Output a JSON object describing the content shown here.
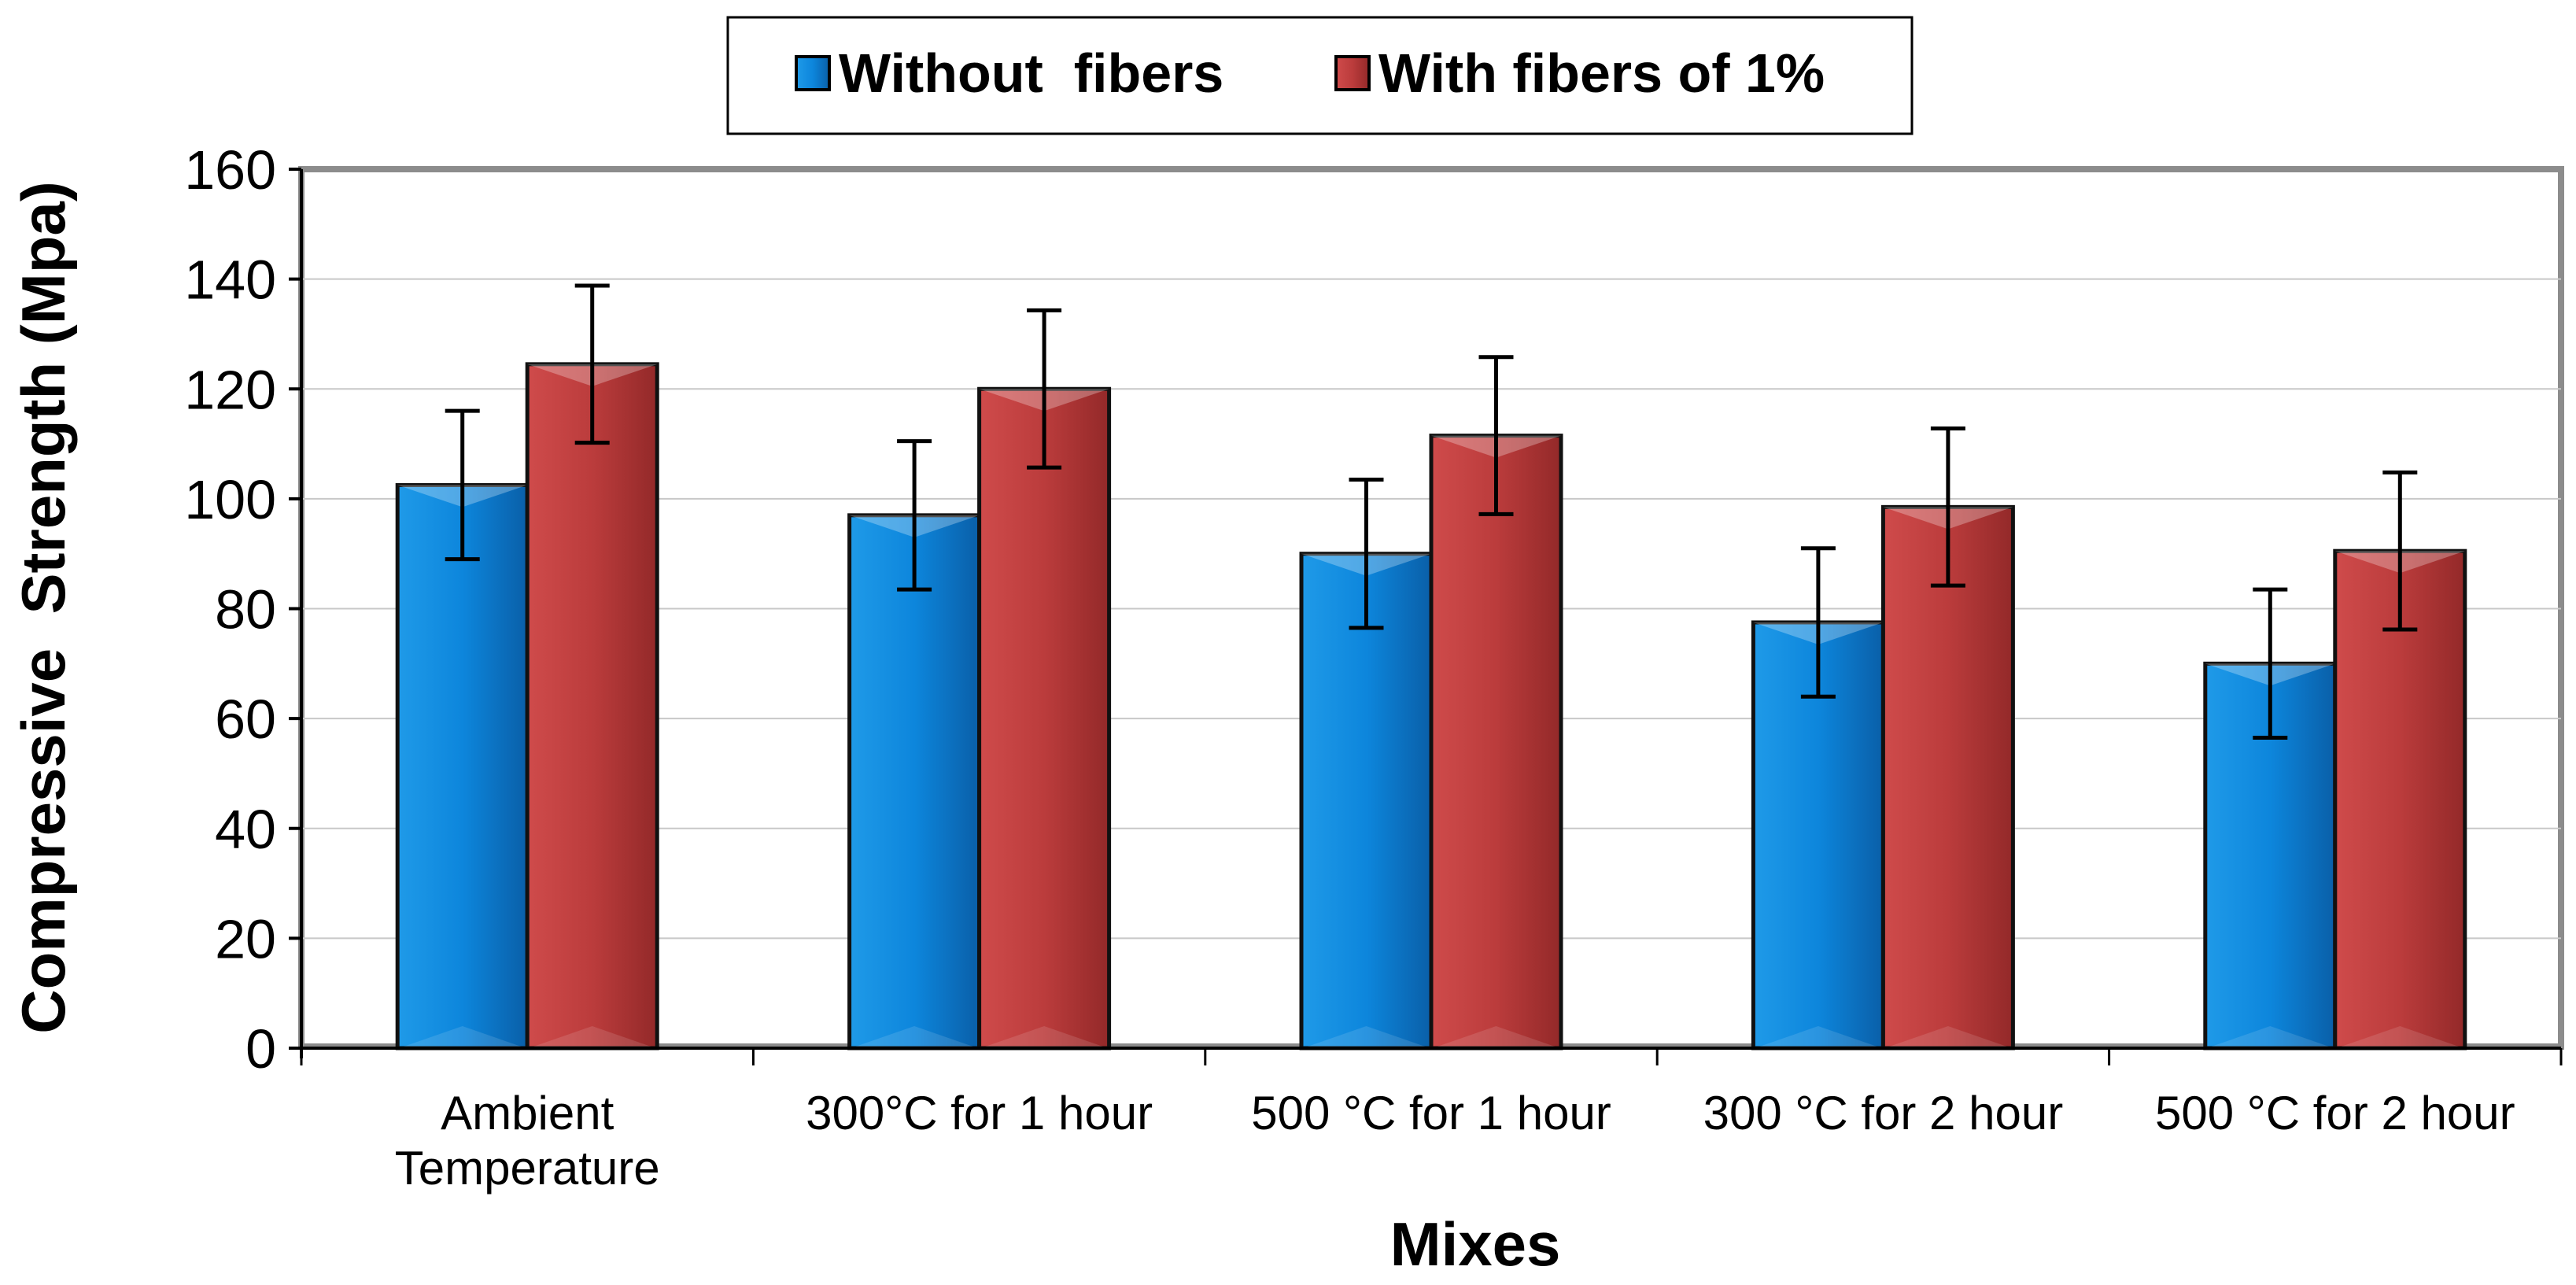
{
  "chart_data": {
    "type": "bar",
    "title": "",
    "xlabel": "Mixes",
    "ylabel": "Compressive  Strength (Mpa)",
    "ylim": [
      0,
      160
    ],
    "yticks": [
      "0",
      "20",
      "40",
      "60",
      "80",
      "100",
      "120",
      "140",
      "160"
    ],
    "grid": true,
    "legend_position": "top-center",
    "categories": [
      [
        "Ambient",
        "Temperature"
      ],
      [
        "300°C  for 1 hour"
      ],
      [
        "500 °C  for 1 hour"
      ],
      [
        "300 °C for 2 hour"
      ],
      [
        "500 °C  for 2 hour"
      ]
    ],
    "series": [
      {
        "name": "Without  fibers",
        "color": "#0f7fd4",
        "values": [
          102.5,
          97,
          90,
          77.5,
          70
        ],
        "error": [
          13.5,
          13.5,
          13.5,
          13.5,
          13.5
        ]
      },
      {
        "name": "With fibers of 1%",
        "color": "#b83838",
        "values": [
          124.5,
          120,
          111.5,
          98.5,
          90.5
        ],
        "error": [
          14.3,
          14.3,
          14.3,
          14.3,
          14.3
        ]
      }
    ]
  }
}
